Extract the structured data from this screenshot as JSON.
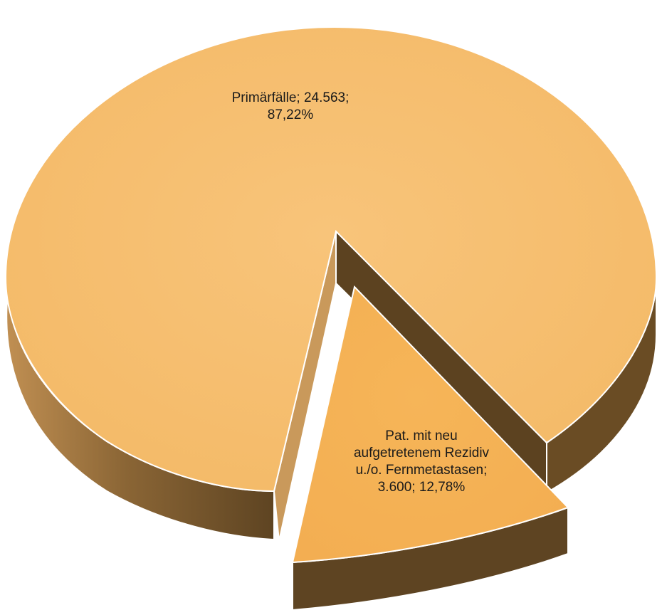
{
  "chart_data": {
    "type": "pie",
    "style": "3d-exploded",
    "slices": [
      {
        "category": "Primärfälle",
        "value": 24563,
        "percent": 87.22,
        "label_lines": [
          "Primärfälle; 24.563;",
          "87,22%"
        ],
        "color": "#f5bd6c"
      },
      {
        "category": "Pat. mit neu aufgetretenem Rezidiv u./o. Fernmetastasen",
        "value": 3600,
        "percent": 12.78,
        "label_lines": [
          "Pat. mit neu",
          "aufgetretenem Rezidiv",
          "u./o. Fernmetastasen;",
          "3.600; 12,78%"
        ],
        "color": "#f4b357"
      }
    ],
    "side_color_dark": "#6a4e28",
    "side_color_light": "#c08f52",
    "legend": "none"
  }
}
